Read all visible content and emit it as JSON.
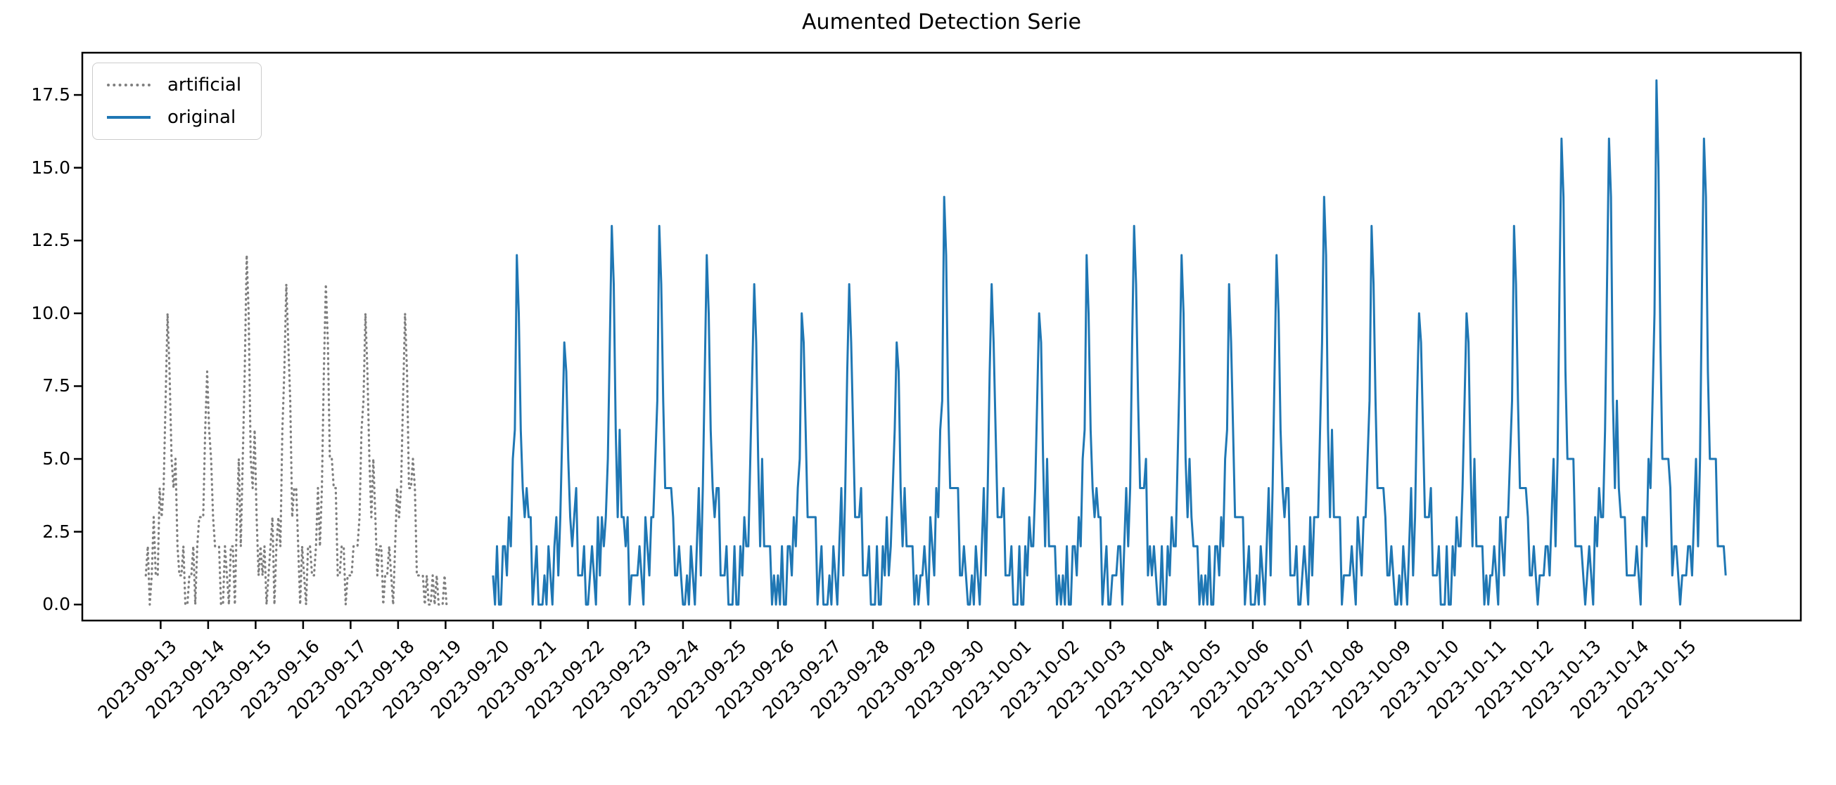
{
  "chart_data": {
    "type": "line",
    "title": "Aumented Detection Serie",
    "xlabel": "",
    "ylabel": "",
    "grid": false,
    "legend_position": "upper left",
    "ylim": [
      -0.55,
      18.95
    ],
    "xlim_days": [
      -1.65,
      34.54
    ],
    "y_ticks": [
      0.0,
      2.5,
      5.0,
      7.5,
      10.0,
      12.5,
      15.0,
      17.5
    ],
    "y_tick_labels": [
      "0.0",
      "2.5",
      "5.0",
      "7.5",
      "10.0",
      "12.5",
      "15.0",
      "17.5"
    ],
    "x_tick_labels": [
      "2023-09-13",
      "2023-09-14",
      "2023-09-15",
      "2023-09-16",
      "2023-09-17",
      "2023-09-18",
      "2023-09-19",
      "2023-09-20",
      "2023-09-21",
      "2023-09-22",
      "2023-09-23",
      "2023-09-24",
      "2023-09-25",
      "2023-09-26",
      "2023-09-27",
      "2023-09-28",
      "2023-09-29",
      "2023-09-30",
      "2023-10-01",
      "2023-10-02",
      "2023-10-03",
      "2023-10-04",
      "2023-10-05",
      "2023-10-06",
      "2023-10-07",
      "2023-10-08",
      "2023-10-09",
      "2023-10-10",
      "2023-10-11",
      "2023-10-12",
      "2023-10-13",
      "2023-10-14",
      "2023-10-15"
    ],
    "jitter": [
      0,
      1,
      -1,
      0,
      1,
      0,
      -1,
      1,
      0,
      -1,
      1,
      1,
      -1,
      0,
      0,
      1,
      -1,
      -1,
      0,
      1,
      0,
      -1,
      1,
      0,
      1,
      -1,
      0,
      1,
      1,
      -1,
      0,
      0,
      -1,
      1,
      0,
      -1
    ],
    "jitter_band": [
      0.05,
      0.68
    ],
    "series": [
      {
        "name": "artificial",
        "color": "#7f7f7f",
        "style": "dotted",
        "line_width": 3.2,
        "start_day": -0.3125,
        "hump_period_hours": 20,
        "jitter_offset": 0,
        "peaks": [
          10,
          8,
          12,
          11,
          11,
          10,
          10
        ],
        "profile": [
          0.05,
          0.1,
          0.05,
          0.1,
          0.15,
          0.1,
          0.2,
          0.3,
          0.25,
          0.45,
          0.7,
          1.0,
          0.8,
          0.5,
          0.35,
          0.4,
          0.25,
          0.15,
          0.1,
          0.05
        ],
        "tail_values": [
          1,
          0,
          1,
          0,
          0,
          1,
          0,
          1,
          0,
          0,
          0,
          1,
          0,
          0
        ]
      },
      {
        "name": "original",
        "color": "#1f77b4",
        "style": "solid",
        "line_width": 3,
        "start_day": 7.0,
        "hump_period_hours": 24,
        "jitter_offset": 5,
        "peaks": [
          12,
          9,
          13,
          13,
          12,
          11,
          10,
          11,
          9,
          14,
          11,
          10,
          12,
          13,
          12,
          11,
          12,
          14,
          13,
          10,
          10,
          13,
          16,
          16,
          18,
          16
        ],
        "profile": [
          0.08,
          0.04,
          0.08,
          0.04,
          0.08,
          0.12,
          0.1,
          0.17,
          0.25,
          0.2,
          0.33,
          0.6,
          1.0,
          0.85,
          0.45,
          0.3,
          0.35,
          0.22,
          0.28,
          0.18,
          0.12,
          0.1,
          0.08,
          0.04
        ],
        "tail_values": []
      }
    ],
    "axis_color": "#000000",
    "legend_border_color": "#cccccc"
  },
  "legend": {
    "items": [
      {
        "label": "artificial"
      },
      {
        "label": "original"
      }
    ]
  }
}
